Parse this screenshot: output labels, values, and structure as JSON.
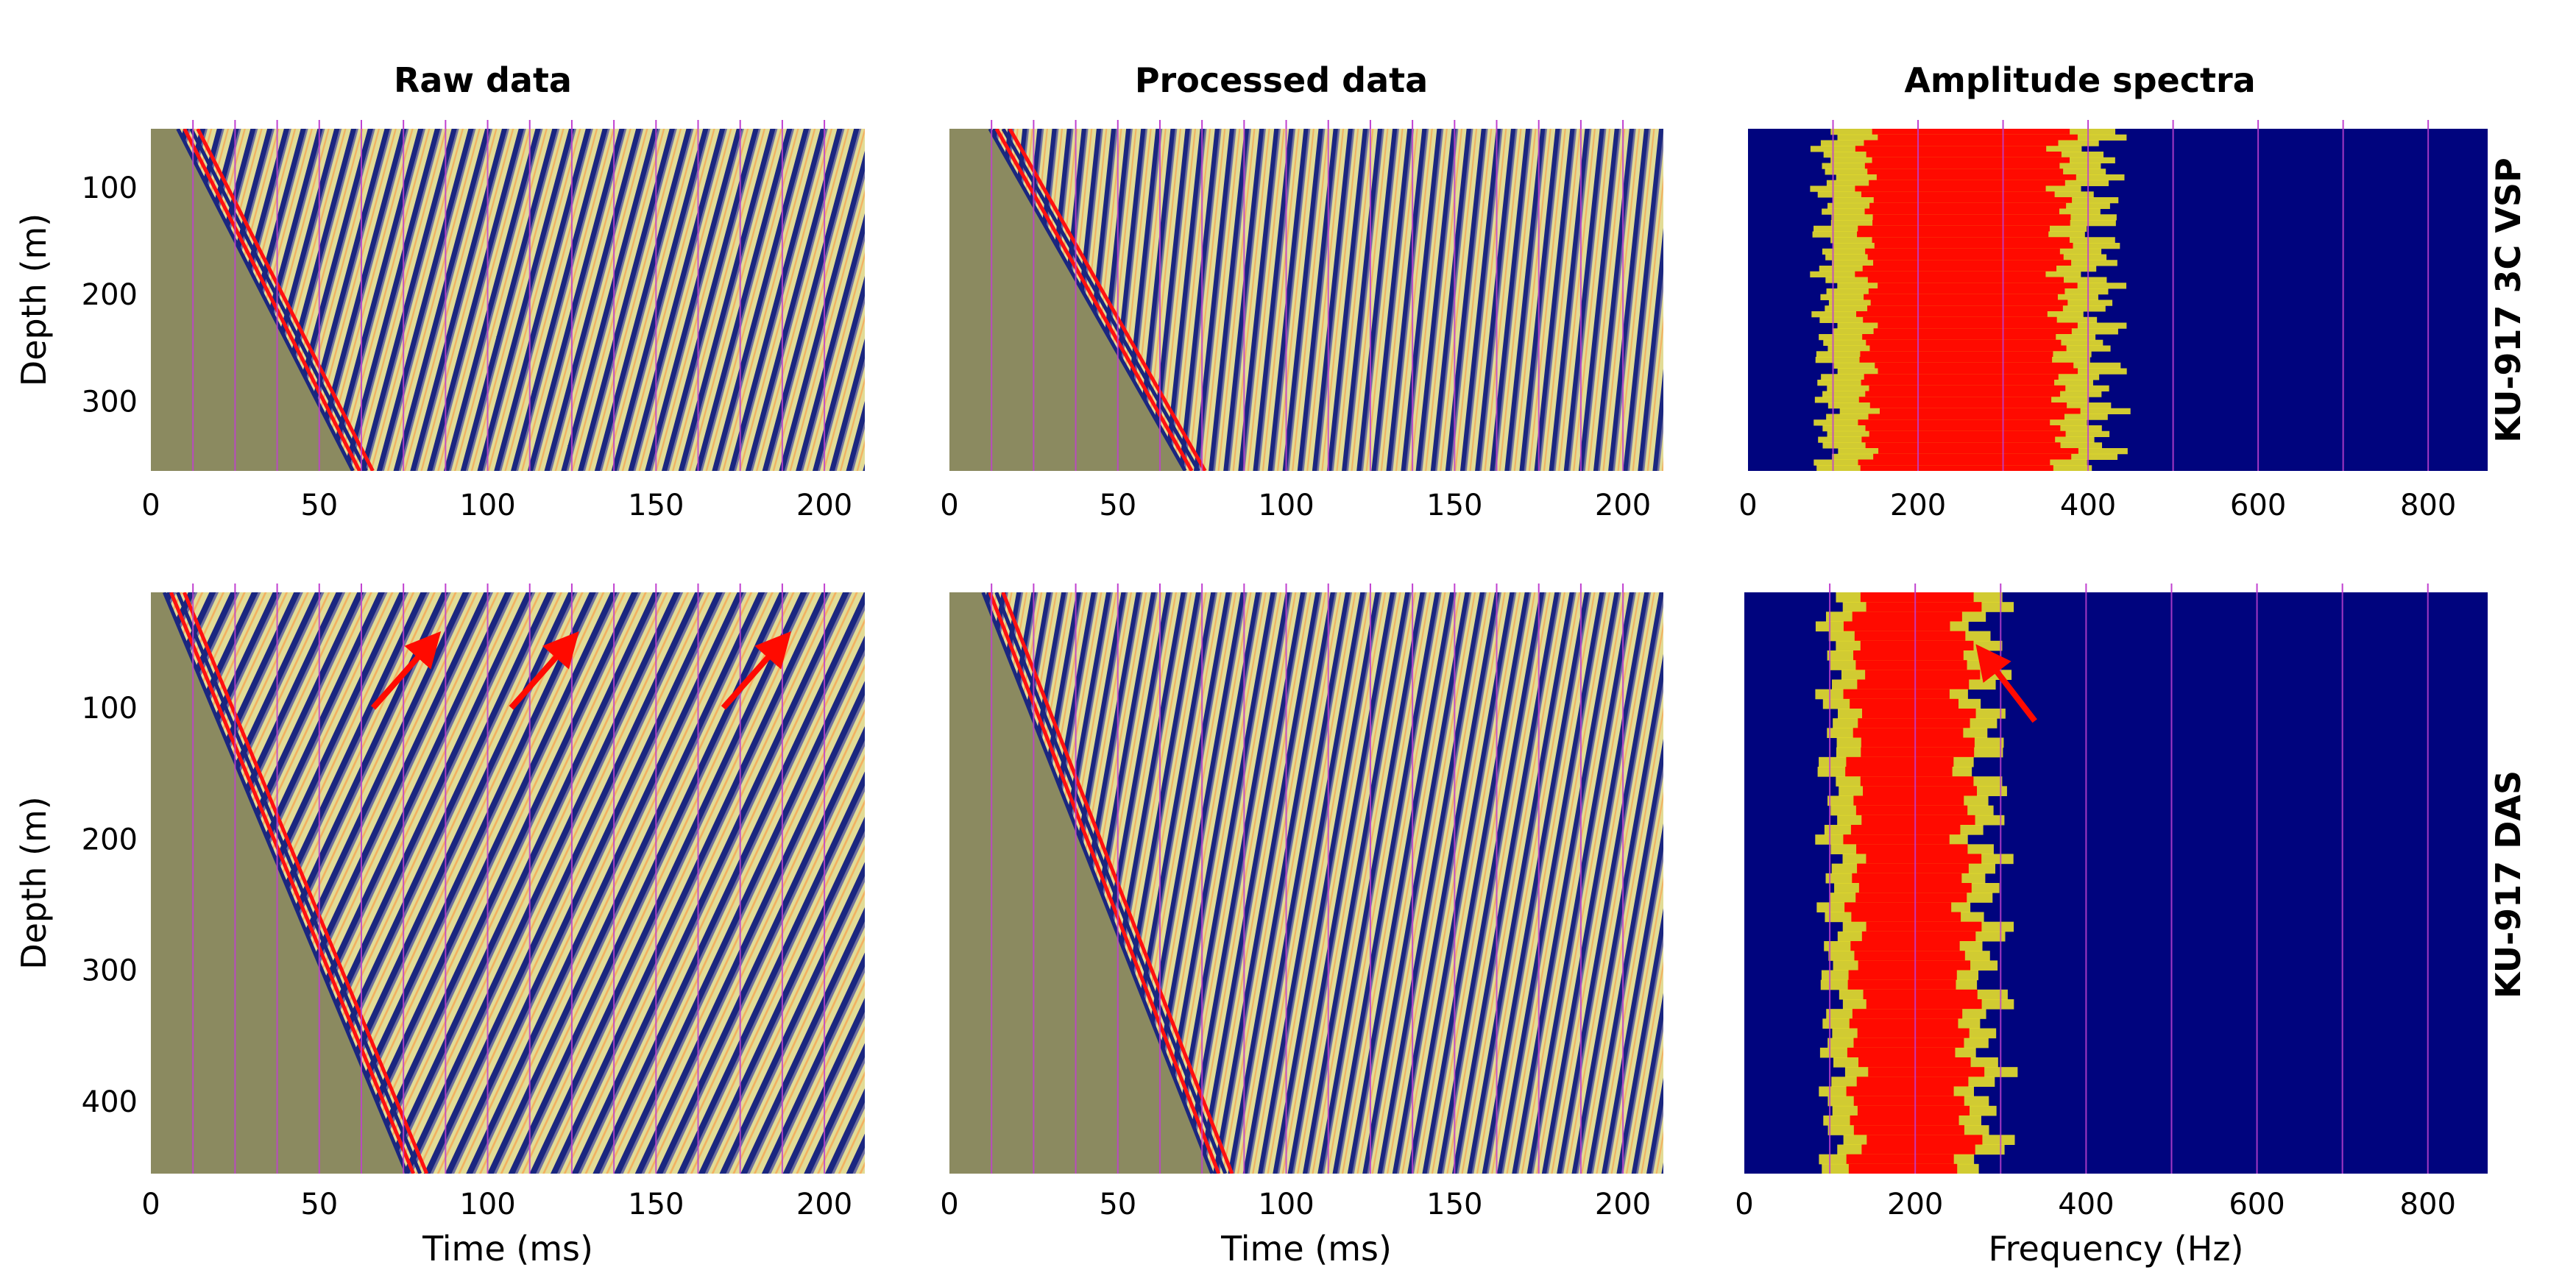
{
  "column_titles": [
    "Raw data",
    "Processed data",
    "Amplitude spectra"
  ],
  "row_titles": [
    "KU-917 3C VSP",
    "KU-917 DAS"
  ],
  "chart_data": [
    {
      "type": "heatmap",
      "name": "Raw data — KU-917 3C VSP",
      "xlabel": "",
      "ylabel": "Depth (m)",
      "xlim": [
        0,
        212
      ],
      "ylim": [
        365,
        45
      ],
      "xticks": [
        0,
        50,
        100,
        150,
        200
      ],
      "yticks": [
        100,
        200,
        300
      ],
      "first_break": {
        "x": [
          8,
          60
        ],
        "y": [
          45,
          365
        ]
      },
      "arrows": []
    },
    {
      "type": "heatmap",
      "name": "Processed data — KU-917 3C VSP",
      "xlabel": "",
      "ylabel": "",
      "xlim": [
        0,
        212
      ],
      "ylim": [
        365,
        45
      ],
      "xticks": [
        0,
        50,
        100,
        150,
        200
      ],
      "yticks": [],
      "first_break": {
        "x": [
          12,
          70
        ],
        "y": [
          45,
          365
        ]
      },
      "arrows": []
    },
    {
      "type": "heatmap",
      "name": "Amplitude spectra — KU-917 3C VSP",
      "xlabel": "",
      "ylabel": "",
      "xlim": [
        0,
        870
      ],
      "ylim": [
        365,
        45
      ],
      "xticks": [
        0,
        200,
        400,
        600,
        800
      ],
      "yticks": [],
      "band": {
        "x": [
          90,
          420
        ],
        "peak_x": [
          140,
          370
        ]
      },
      "arrows": []
    },
    {
      "type": "heatmap",
      "name": "Raw data — KU-917 DAS",
      "xlabel": "Time (ms)",
      "ylabel": "Depth (m)",
      "xlim": [
        0,
        212
      ],
      "ylim": [
        455,
        12
      ],
      "xticks": [
        0,
        50,
        100,
        150,
        200
      ],
      "yticks": [
        100,
        200,
        300,
        400
      ],
      "first_break": {
        "x": [
          4,
          76
        ],
        "y": [
          12,
          455
        ]
      },
      "arrows": [
        {
          "from": [
            66,
            100
          ],
          "to": [
            85,
            45
          ]
        },
        {
          "from": [
            107,
            100
          ],
          "to": [
            126,
            45
          ]
        },
        {
          "from": [
            170,
            100
          ],
          "to": [
            189,
            45
          ]
        }
      ]
    },
    {
      "type": "heatmap",
      "name": "Processed data — KU-917 DAS",
      "xlabel": "Time (ms)",
      "ylabel": "",
      "xlim": [
        0,
        212
      ],
      "ylim": [
        455,
        12
      ],
      "xticks": [
        0,
        50,
        100,
        150,
        200
      ],
      "yticks": [],
      "first_break": {
        "x": [
          10,
          78
        ],
        "y": [
          12,
          455
        ]
      },
      "arrows": []
    },
    {
      "type": "heatmap",
      "name": "Amplitude spectra — KU-917 DAS",
      "xlabel": "Frequency (Hz)",
      "ylabel": "",
      "xlim": [
        0,
        870
      ],
      "ylim": [
        455,
        12
      ],
      "xticks": [
        0,
        200,
        400,
        600,
        800
      ],
      "yticks": [],
      "band": {
        "x": [
          100,
          290
        ],
        "peak_x": [
          130,
          260
        ]
      },
      "arrows": [
        {
          "from": [
            340,
            110
          ],
          "to": [
            275,
            55
          ]
        }
      ]
    }
  ],
  "colors": {
    "background_seismic": "#8b8a60",
    "trough": "#1a2680",
    "mid": "#e2dc96",
    "peak": "#ff1010",
    "spectrum_bg": "#00047e",
    "spectrum_yellow": "#e8e12a",
    "spectrum_red": "#ff0a00",
    "gridline": "#c040d0",
    "arrow": "#ff0a00"
  }
}
